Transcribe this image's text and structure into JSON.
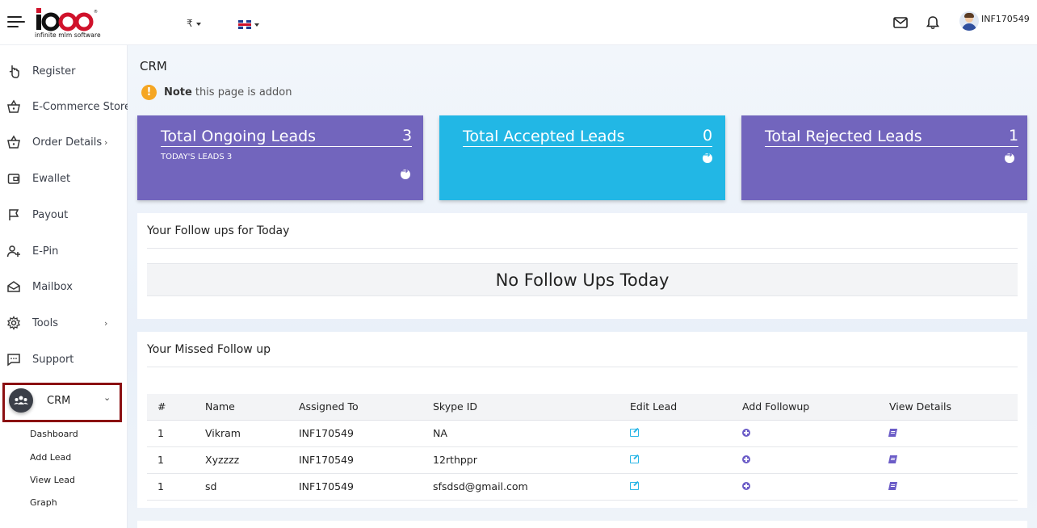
{
  "header": {
    "logo_text": "ioOO",
    "logo_sub": "infinite mlm software",
    "currency": "₹",
    "username": "INF170549"
  },
  "sidebar": {
    "items": [
      {
        "label": "Register",
        "icon": "hand-pointer-icon"
      },
      {
        "label": "E-Commerce Store",
        "icon": "basket-icon"
      },
      {
        "label": "Order Details",
        "icon": "basket-icon"
      },
      {
        "label": "Ewallet",
        "icon": "wallet-icon"
      },
      {
        "label": "Payout",
        "icon": "flag-icon"
      },
      {
        "label": "E-Pin",
        "icon": "user-plus-icon"
      },
      {
        "label": "Mailbox",
        "icon": "mailbox-icon"
      },
      {
        "label": "Tools",
        "icon": "gear-icon"
      },
      {
        "label": "Support",
        "icon": "chat-icon"
      }
    ],
    "crm_label": "CRM",
    "crm_sub": [
      "Dashboard",
      "Add Lead",
      "View Lead",
      "Graph"
    ]
  },
  "main": {
    "title": "CRM",
    "note_bold": "Note",
    "note_text": "this page is addon",
    "cards": [
      {
        "title": "Total Ongoing Leads",
        "value": "3",
        "sub": "TODAY'S LEADS 3",
        "color": "#7265bd"
      },
      {
        "title": "Total Accepted Leads",
        "value": "0",
        "sub": "",
        "color": "#22b7e5"
      },
      {
        "title": "Total Rejected Leads",
        "value": "1",
        "sub": "",
        "color": "#7265bd"
      }
    ],
    "followups_title": "Your Follow ups for Today",
    "no_followups": "No Follow Ups Today",
    "missed_title": "Your Missed Follow up",
    "table": {
      "headers": [
        "#",
        "Name",
        "Assigned To",
        "Skype ID",
        "Edit Lead",
        "Add Followup",
        "View Details"
      ],
      "rows": [
        {
          "num": "1",
          "name": "Vikram",
          "assigned": "INF170549",
          "skype": "NA"
        },
        {
          "num": "1",
          "name": "Xyzzzz",
          "assigned": "INF170549",
          "skype": "12rthppr"
        },
        {
          "num": "1",
          "name": "sd",
          "assigned": "INF170549",
          "skype": "sfsdsd@gmail.com"
        }
      ]
    }
  }
}
